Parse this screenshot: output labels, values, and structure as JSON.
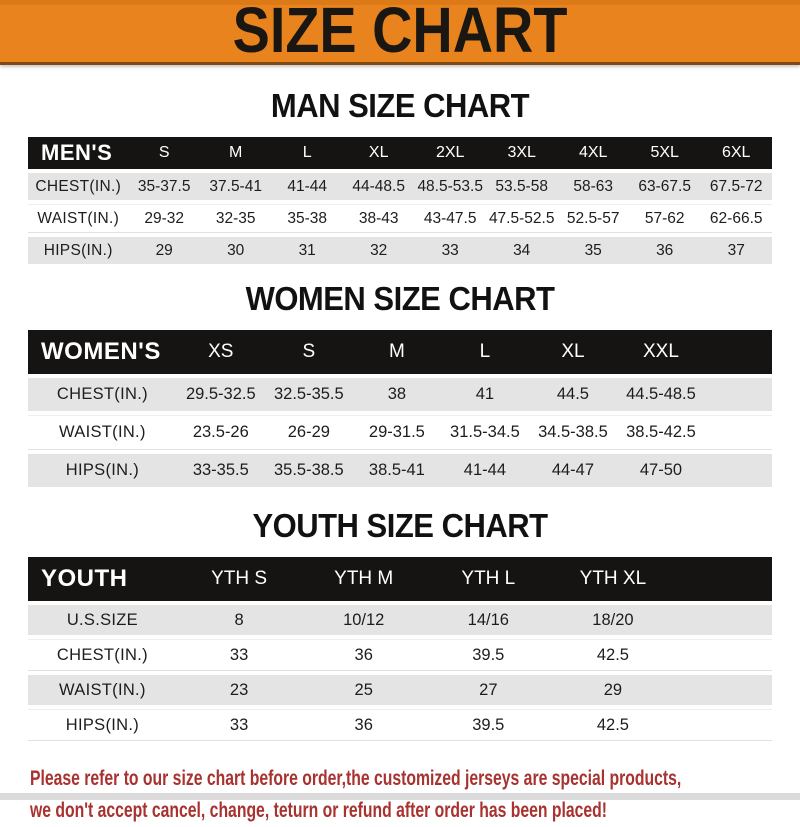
{
  "banner": {
    "title": "SIZE CHART"
  },
  "sections": [
    {
      "title": "MAN SIZE CHART",
      "table": {
        "header_label": "MEN'S",
        "columns": [
          "S",
          "M",
          "L",
          "XL",
          "2XL",
          "3XL",
          "4XL",
          "5XL",
          "6XL"
        ],
        "rows": [
          {
            "label": "CHEST(IN.)",
            "values": [
              "35-37.5",
              "37.5-41",
              "41-44",
              "44-48.5",
              "48.5-53.5",
              "53.5-58",
              "58-63",
              "63-67.5",
              "67.5-72"
            ]
          },
          {
            "label": "WAIST(IN.)",
            "values": [
              "29-32",
              "32-35",
              "35-38",
              "38-43",
              "43-47.5",
              "47.5-52.5",
              "52.5-57",
              "57-62",
              "62-66.5"
            ]
          },
          {
            "label": "HIPS(IN.)",
            "values": [
              "29",
              "30",
              "31",
              "32",
              "33",
              "34",
              "35",
              "36",
              "37"
            ]
          }
        ]
      }
    },
    {
      "title": "WOMEN SIZE CHART",
      "table": {
        "header_label": "WOMEN'S",
        "columns": [
          "XS",
          "S",
          "M",
          "L",
          "XL",
          "XXL"
        ],
        "rows": [
          {
            "label": "CHEST(IN.)",
            "values": [
              "29.5-32.5",
              "32.5-35.5",
              "38",
              "41",
              "44.5",
              "44.5-48.5"
            ]
          },
          {
            "label": "WAIST(IN.)",
            "values": [
              "23.5-26",
              "26-29",
              "29-31.5",
              "31.5-34.5",
              "34.5-38.5",
              "38.5-42.5"
            ]
          },
          {
            "label": "HIPS(IN.)",
            "values": [
              "33-35.5",
              "35.5-38.5",
              "38.5-41",
              "41-44",
              "44-47",
              "47-50"
            ]
          }
        ]
      }
    },
    {
      "title": "YOUTH SIZE CHART",
      "table": {
        "header_label": "YOUTH",
        "columns": [
          "YTH S",
          "YTH M",
          "YTH L",
          "YTH XL"
        ],
        "rows": [
          {
            "label": "U.S.SIZE",
            "values": [
              "8",
              "10/12",
              "14/16",
              "18/20"
            ]
          },
          {
            "label": "CHEST(IN.)",
            "values": [
              "33",
              "36",
              "39.5",
              "42.5"
            ]
          },
          {
            "label": "WAIST(IN.)",
            "values": [
              "23",
              "25",
              "27",
              "29"
            ]
          },
          {
            "label": "HIPS(IN.)",
            "values": [
              "33",
              "36",
              "39.5",
              "42.5"
            ]
          }
        ]
      }
    }
  ],
  "footer": {
    "line1": "Please refer to our size chart before order,the customized jerseys are special products,",
    "line2": "we don't accept cancel, change, teturn or refund after order has been placed!"
  },
  "colors": {
    "banner_orange": "#E8831E",
    "header_black": "#161412",
    "row_gray": "#E4E4E4",
    "notice_red": "#A8322F"
  }
}
